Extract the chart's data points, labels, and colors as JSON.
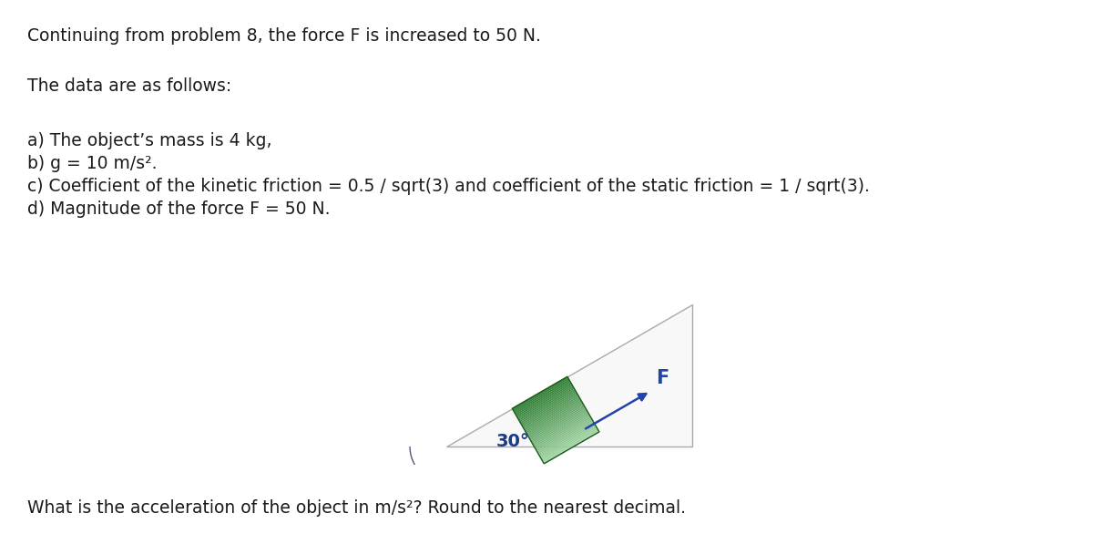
{
  "title_line": "Continuing from problem 8, the force F is increased to 50 N.",
  "line2": "The data are as follows:",
  "line_a": "a) The object’s mass is 4 kg,",
  "line_b": "b) g = 10 m/s².",
  "line_c": "c) Coefficient of the kinetic friction = 0.5 / sqrt(3) and coefficient of the static friction = 1 / sqrt(3).",
  "line_d": "d) Magnitude of the force F = 50 N.",
  "question": "What is the acceleration of the object in m/s²? Round to the nearest decimal.",
  "angle_label": "30°",
  "force_label": "F",
  "bg_color": "#ffffff",
  "text_color": "#1a1a1a",
  "arrow_color": "#2244aa",
  "angle_color": "#1a3a8a",
  "font_size_main": 13.5,
  "ramp_face": "#f8f8f8",
  "ramp_edge": "#aaaaaa",
  "box_dark": "#2e7d32",
  "box_mid": "#4caf50",
  "box_light": "#a5d6a7"
}
